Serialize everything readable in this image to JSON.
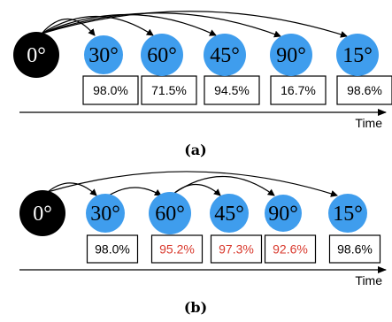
{
  "colors": {
    "start_node": "#000000",
    "node": "#3f9ded",
    "text_normal": "#000000",
    "text_highlight": "#d93a2e"
  },
  "panels": [
    {
      "caption": "(a)",
      "time_label": "Time",
      "start": "0°",
      "nodes": [
        {
          "angle": "30°",
          "acc": "98.0%",
          "highlight": false
        },
        {
          "angle": "60°",
          "acc": "71.5%",
          "highlight": false
        },
        {
          "angle": "45°",
          "acc": "94.5%",
          "highlight": false
        },
        {
          "angle": "90°",
          "acc": "16.7%",
          "highlight": false
        },
        {
          "angle": "15°",
          "acc": "98.6%",
          "highlight": false
        }
      ],
      "edges": [
        {
          "from": 0,
          "to": 1
        },
        {
          "from": 0,
          "to": 2
        },
        {
          "from": 0,
          "to": 3
        },
        {
          "from": 0,
          "to": 4
        },
        {
          "from": 0,
          "to": 5
        }
      ]
    },
    {
      "caption": "(b)",
      "time_label": "Time",
      "start": "0°",
      "nodes": [
        {
          "angle": "30°",
          "acc": "98.0%",
          "highlight": false
        },
        {
          "angle": "60°",
          "acc": "95.2%",
          "highlight": true
        },
        {
          "angle": "45°",
          "acc": "97.3%",
          "highlight": true
        },
        {
          "angle": "90°",
          "acc": "92.6%",
          "highlight": true
        },
        {
          "angle": "15°",
          "acc": "98.6%",
          "highlight": false
        }
      ],
      "edges": [
        {
          "from": 0,
          "to": 1
        },
        {
          "from": 1,
          "to": 2
        },
        {
          "from": 2,
          "to": 3
        },
        {
          "from": 2,
          "to": 4
        },
        {
          "from": 0,
          "to": 5
        }
      ]
    }
  ]
}
